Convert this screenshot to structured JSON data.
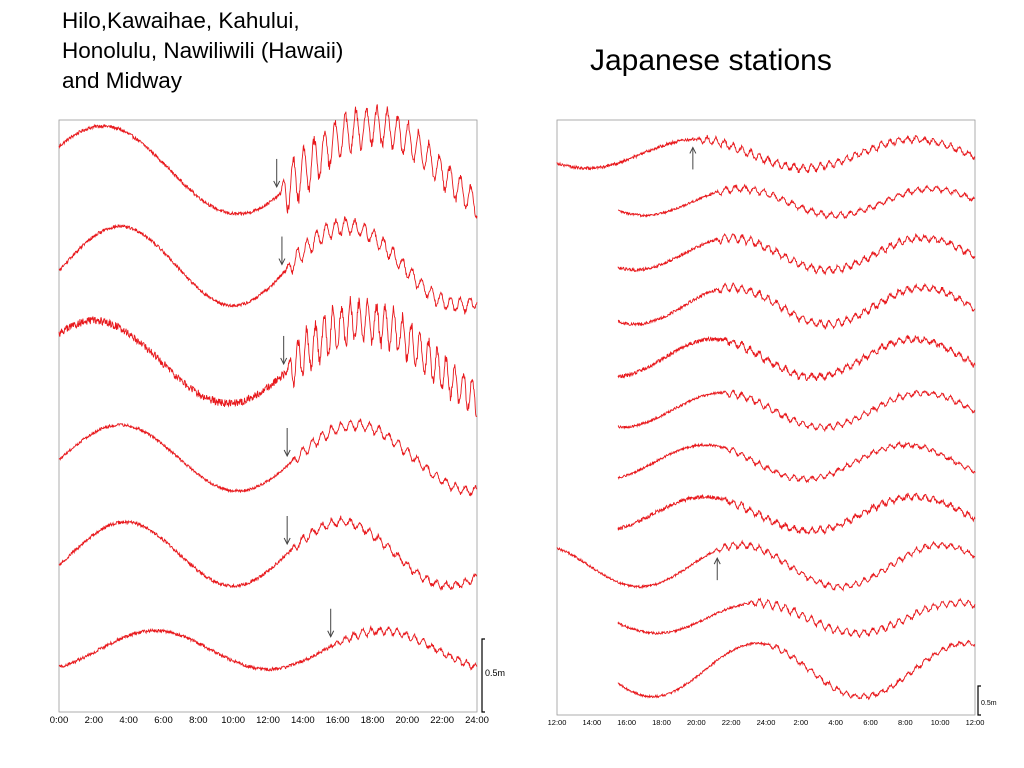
{
  "slide": {
    "title_left": [
      "Hilo,Kawaihae, Kahului,",
      "Honolulu, Nawiliwili (Hawaii)",
      "and Midway"
    ],
    "title_right": "Japanese stations"
  },
  "colors": {
    "trace": "#e8181c",
    "arrow": "#444444",
    "frame": "#999999",
    "text": "#000000"
  },
  "chart_data": [
    {
      "type": "line",
      "subject": "tide gauge records",
      "x_unit": "hours",
      "x_ticks": [
        "0:00",
        "2:00",
        "4:00",
        "6:00",
        "8:00",
        "10:00",
        "12:00",
        "14:00",
        "16:00",
        "18:00",
        "20:00",
        "22:00",
        "24:00"
      ],
      "xlim": [
        0,
        24
      ],
      "scale_bar": "0.5m",
      "series": [
        {
          "start": 0,
          "end": 24,
          "peaks_h": [
            2.5,
            18.0
          ],
          "baseline": 0.0,
          "amp": 0.8,
          "noise": 0.03,
          "onset_h": 12.7,
          "arrow_h": 12.5,
          "arrow_dir": "down",
          "wave_amp": 0.55,
          "wave_period_h": 0.6,
          "wave_decay_h": 18
        },
        {
          "start": 0,
          "end": 24,
          "peaks_h": [
            3.5,
            16.5
          ],
          "baseline": 0.0,
          "amp": 0.72,
          "noise": 0.03,
          "onset_h": 13.0,
          "arrow_h": 12.8,
          "arrow_dir": "down",
          "wave_amp": 0.2,
          "wave_period_h": 0.55,
          "wave_decay_h": 30
        },
        {
          "start": 0,
          "end": 24,
          "peaks_h": [
            2.0,
            17.5
          ],
          "baseline": 0.0,
          "amp": 0.75,
          "noise": 0.07,
          "onset_h": 13.1,
          "arrow_h": 12.9,
          "arrow_dir": "down",
          "wave_amp": 0.5,
          "wave_period_h": 0.5,
          "wave_decay_h": 40
        },
        {
          "start": 0,
          "end": 24,
          "peaks_h": [
            3.5,
            17.0
          ],
          "baseline": 0.0,
          "amp": 0.6,
          "noise": 0.025,
          "onset_h": 13.3,
          "arrow_h": 13.1,
          "arrow_dir": "down",
          "wave_amp": 0.12,
          "wave_period_h": 0.55,
          "wave_decay_h": 30
        },
        {
          "start": 0,
          "end": 24,
          "peaks_h": [
            3.8,
            16.2
          ],
          "baseline": 0.0,
          "amp": 0.58,
          "noise": 0.03,
          "onset_h": 13.3,
          "arrow_h": 13.1,
          "arrow_dir": "down",
          "wave_amp": 0.1,
          "wave_period_h": 0.55,
          "wave_decay_h": 30
        },
        {
          "start": 0,
          "end": 24,
          "peaks_h": [
            5.5,
            18.5
          ],
          "baseline": 0.0,
          "amp": 0.35,
          "noise": 0.03,
          "onset_h": 15.8,
          "arrow_h": 15.6,
          "arrow_dir": "down",
          "wave_amp": 0.08,
          "wave_period_h": 0.5,
          "wave_decay_h": 30
        }
      ]
    },
    {
      "type": "line",
      "subject": "tide gauge records",
      "x_unit": "hours after 12:00",
      "x_ticks": [
        "12:00",
        "14:00",
        "16:00",
        "18:00",
        "20:00",
        "22:00",
        "24:00",
        "2:00",
        "4:00",
        "6:00",
        "8:00",
        "10:00",
        "12:00"
      ],
      "xlim": [
        0,
        24
      ],
      "scale_bar": "0.5m",
      "series": [
        {
          "start": 0,
          "end": 24,
          "peaks_h": [
            8.0,
            20.5
          ],
          "baseline": -0.1,
          "amp": 0.38,
          "noise": 0.04,
          "onset_h": 8.0,
          "arrow_h": 7.8,
          "arrow_dir": "up",
          "wave_amp": 0.12,
          "wave_period_h": 0.5,
          "wave_decay_h": 40
        },
        {
          "start": 3.5,
          "end": 24,
          "peaks_h": [
            10.5,
            21.5
          ],
          "baseline": 0.0,
          "amp": 0.35,
          "noise": 0.03,
          "onset_h": 9.0,
          "wave_amp": 0.1,
          "wave_period_h": 0.55,
          "wave_decay_h": 40
        },
        {
          "start": 3.5,
          "end": 24,
          "peaks_h": [
            10.0,
            21.0
          ],
          "baseline": 0.0,
          "amp": 0.42,
          "noise": 0.04,
          "onset_h": 9.0,
          "wave_amp": 0.12,
          "wave_period_h": 0.5,
          "wave_decay_h": 40
        },
        {
          "start": 3.5,
          "end": 24,
          "peaks_h": [
            10.0,
            21.0
          ],
          "baseline": 0.0,
          "amp": 0.48,
          "noise": 0.04,
          "onset_h": 9.0,
          "wave_amp": 0.12,
          "wave_period_h": 0.5,
          "wave_decay_h": 40
        },
        {
          "start": 3.5,
          "end": 24,
          "peaks_h": [
            9.0,
            20.5
          ],
          "baseline": 0.0,
          "amp": 0.5,
          "noise": 0.05,
          "onset_h": 9.5,
          "wave_amp": 0.1,
          "wave_period_h": 0.5,
          "wave_decay_h": 40
        },
        {
          "start": 3.5,
          "end": 24,
          "peaks_h": [
            9.5,
            21.0
          ],
          "baseline": 0.0,
          "amp": 0.45,
          "noise": 0.03,
          "onset_h": 9.5,
          "wave_amp": 0.1,
          "wave_period_h": 0.5,
          "wave_decay_h": 40
        },
        {
          "start": 3.5,
          "end": 24,
          "peaks_h": [
            8.5,
            20.0
          ],
          "baseline": 0.0,
          "amp": 0.45,
          "noise": 0.03,
          "onset_h": 9.5,
          "wave_amp": 0.08,
          "wave_period_h": 0.5,
          "wave_decay_h": 40
        },
        {
          "start": 3.5,
          "end": 24,
          "peaks_h": [
            8.5,
            20.5
          ],
          "baseline": 0.0,
          "amp": 0.45,
          "noise": 0.05,
          "onset_h": 9.5,
          "wave_amp": 0.1,
          "wave_period_h": 0.5,
          "wave_decay_h": 40
        },
        {
          "start": 0,
          "end": 24,
          "peaks_h": [
            10.5,
            22.0
          ],
          "baseline": 0.0,
          "amp": 0.55,
          "noise": 0.03,
          "onset_h": 9.0,
          "arrow_h": 9.2,
          "arrow_dir": "up",
          "wave_amp": 0.1,
          "wave_period_h": 0.5,
          "wave_decay_h": 40
        },
        {
          "start": 3.5,
          "end": 24,
          "peaks_h": [
            11.5,
            23.0
          ],
          "baseline": 0.0,
          "amp": 0.4,
          "noise": 0.03,
          "onset_h": 11.0,
          "wave_amp": 0.12,
          "wave_period_h": 0.5,
          "wave_decay_h": 40
        },
        {
          "start": 3.5,
          "end": 24,
          "peaks_h": [
            11.5,
            23.5
          ],
          "baseline": 0.0,
          "amp": 0.7,
          "noise": 0.03,
          "onset_h": 12.0,
          "wave_amp": 0.08,
          "wave_period_h": 0.5,
          "wave_decay_h": 40
        }
      ]
    }
  ]
}
